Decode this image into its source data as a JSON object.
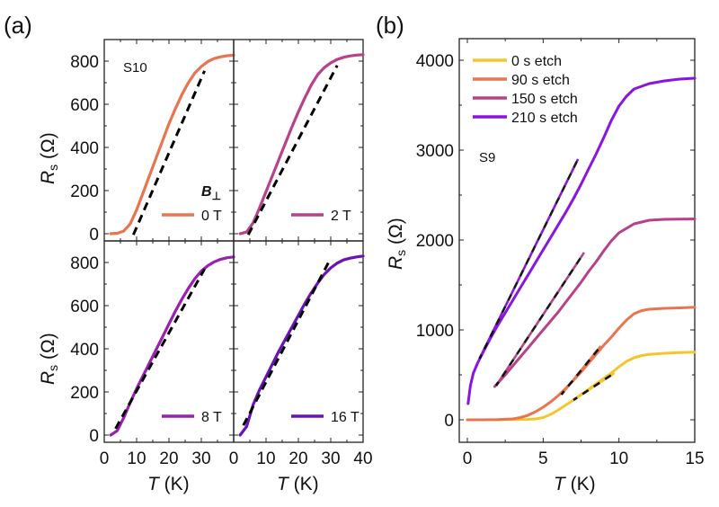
{
  "chart_data": [
    {
      "panel": "(a)",
      "type": "line",
      "layout": "2x2 grid of subplots sharing axes",
      "xlabel": "T (K)",
      "ylabel": "Rs (Ω)",
      "xlim": [
        0,
        40
      ],
      "ylim": [
        -30,
        880
      ],
      "xticks": [
        0,
        10,
        20,
        30,
        40
      ],
      "yticks": [
        0,
        200,
        400,
        600,
        800
      ],
      "xtick_labels_left": [
        "0",
        "10",
        "20",
        "30",
        ""
      ],
      "xtick_labels_right": [
        "0",
        "10",
        "20",
        "30",
        "40"
      ],
      "ytick_labels": [
        "0",
        "200",
        "400",
        "600",
        "800"
      ],
      "sample_label": "S10",
      "field_label": "B⊥",
      "subplots": [
        {
          "name": "0 T",
          "color": "#E8754F",
          "position": "top-left",
          "x": [
            2,
            4,
            6,
            8,
            10,
            12,
            14,
            16,
            18,
            20,
            22,
            24,
            26,
            28,
            30,
            32,
            34,
            36,
            38,
            40
          ],
          "y": [
            0,
            2,
            12,
            45,
            110,
            190,
            270,
            350,
            430,
            510,
            580,
            645,
            700,
            745,
            775,
            798,
            812,
            820,
            825,
            828
          ],
          "fit": {
            "x": [
              9,
              31
            ],
            "y": [
              -5,
              755
            ]
          }
        },
        {
          "name": "2 T",
          "color": "#B8418A",
          "position": "top-right",
          "x": [
            2,
            4,
            6,
            8,
            10,
            12,
            14,
            16,
            18,
            20,
            22,
            24,
            26,
            28,
            30,
            32,
            34,
            36,
            38,
            40
          ],
          "y": [
            0,
            8,
            50,
            120,
            195,
            270,
            345,
            420,
            495,
            565,
            630,
            690,
            738,
            770,
            792,
            808,
            818,
            824,
            828,
            830
          ],
          "fit": {
            "x": [
              4.5,
              32
            ],
            "y": [
              -5,
              780
            ]
          }
        },
        {
          "name": "8 T",
          "color": "#9B1FB0",
          "position": "bottom-left",
          "x": [
            2,
            4,
            6,
            8,
            10,
            12,
            14,
            16,
            18,
            20,
            22,
            24,
            26,
            28,
            30,
            32,
            34,
            36,
            38,
            40
          ],
          "y": [
            0,
            20,
            80,
            150,
            215,
            275,
            335,
            395,
            455,
            515,
            575,
            630,
            680,
            725,
            760,
            785,
            803,
            815,
            822,
            826
          ],
          "fit": {
            "x": [
              3.5,
              31
            ],
            "y": [
              30,
              770
            ]
          }
        },
        {
          "name": "16 T",
          "color": "#6A12B8",
          "position": "bottom-right",
          "x": [
            2,
            4,
            6,
            8,
            10,
            12,
            14,
            16,
            18,
            20,
            22,
            24,
            26,
            28,
            30,
            32,
            34,
            36,
            38,
            40
          ],
          "y": [
            0,
            40,
            140,
            210,
            270,
            330,
            390,
            445,
            500,
            555,
            610,
            660,
            705,
            745,
            775,
            797,
            812,
            820,
            826,
            830
          ],
          "fit": {
            "x": [
              3,
              30
            ],
            "y": [
              45,
              820
            ]
          }
        }
      ]
    },
    {
      "panel": "(b)",
      "type": "line",
      "xlabel": "T (K)",
      "ylabel": "Rs (Ω)",
      "xlim": [
        -0.4,
        15
      ],
      "ylim": [
        -250,
        4450
      ],
      "xticks": [
        0,
        5,
        10,
        15
      ],
      "xtick_labels": [
        "0",
        "5",
        "10",
        "15"
      ],
      "yticks": [
        0,
        1000,
        2000,
        3000,
        4000
      ],
      "ytick_labels": [
        "0",
        "1000",
        "2000",
        "3000",
        "4000"
      ],
      "sample_label": "S9",
      "legend_position": "top-left",
      "series": [
        {
          "name": "0 s etch",
          "color": "#F5C52E",
          "x": [
            0,
            1,
            2,
            3,
            4,
            4.5,
            5,
            5.5,
            6,
            6.5,
            7,
            7.5,
            8,
            8.5,
            9,
            9.5,
            10,
            10.5,
            11,
            11.5,
            12,
            13,
            14,
            15
          ],
          "y": [
            0,
            0,
            0,
            2,
            5,
            10,
            25,
            60,
            110,
            165,
            220,
            280,
            340,
            400,
            460,
            520,
            590,
            650,
            690,
            715,
            728,
            740,
            748,
            752
          ],
          "fit": {
            "x": [
              7,
              9.7
            ],
            "y": [
              220,
              520
            ]
          }
        },
        {
          "name": "90 s etch",
          "color": "#E8754F",
          "x": [
            0,
            1,
            2,
            3,
            3.5,
            4,
            4.5,
            5,
            5.5,
            6,
            6.5,
            7,
            7.5,
            8,
            8.5,
            9,
            9.5,
            10,
            10.5,
            11,
            11.5,
            12,
            13,
            14,
            15
          ],
          "y": [
            0,
            0,
            2,
            10,
            25,
            50,
            90,
            140,
            200,
            270,
            350,
            440,
            530,
            630,
            730,
            830,
            920,
            1020,
            1110,
            1180,
            1215,
            1230,
            1240,
            1245,
            1252
          ],
          "fit": {
            "x": [
              6.2,
              8.8
            ],
            "y": [
              280,
              820
            ]
          }
        },
        {
          "name": "150 s etch",
          "color": "#B8418A",
          "x": [
            1.8,
            2.5,
            3,
            3.5,
            4,
            4.5,
            5,
            5.5,
            6,
            6.5,
            7,
            7.5,
            8,
            8.5,
            9,
            9.5,
            10,
            11,
            12,
            13,
            14,
            15
          ],
          "y": [
            370,
            500,
            600,
            700,
            800,
            900,
            1000,
            1100,
            1200,
            1310,
            1420,
            1530,
            1650,
            1760,
            1880,
            1990,
            2080,
            2180,
            2220,
            2230,
            2232,
            2235
          ],
          "fit": {
            "x": [
              1.9,
              7.7
            ],
            "y": [
              380,
              1860
            ]
          }
        },
        {
          "name": "210 s etch",
          "color": "#8A14E0",
          "x": [
            0.05,
            0.2,
            0.4,
            0.7,
            1,
            1.5,
            2,
            2.5,
            3,
            3.5,
            4,
            4.5,
            5,
            5.5,
            6,
            6.5,
            7,
            7.5,
            8,
            8.5,
            9,
            9.5,
            10,
            10.5,
            11,
            12,
            13,
            14,
            15
          ],
          "y": [
            180,
            380,
            520,
            640,
            740,
            900,
            1050,
            1190,
            1330,
            1470,
            1610,
            1750,
            1890,
            2030,
            2170,
            2310,
            2460,
            2620,
            2790,
            2960,
            3140,
            3330,
            3490,
            3600,
            3680,
            3740,
            3770,
            3790,
            3800
          ],
          "fit": {
            "x": [
              0.8,
              7.3
            ],
            "y": [
              680,
              2900
            ]
          }
        }
      ]
    }
  ],
  "labels": {
    "panel_a": "(a)",
    "panel_b": "(b)",
    "s10": "S10",
    "s9": "S9",
    "bperp_B": "B",
    "bperp_sub": "⊥",
    "ylabel_R": "R",
    "ylabel_sub": "s",
    "ylabel_unit": " (Ω)",
    "xlabel_T": "T",
    "xlabel_unit": " (K)"
  }
}
